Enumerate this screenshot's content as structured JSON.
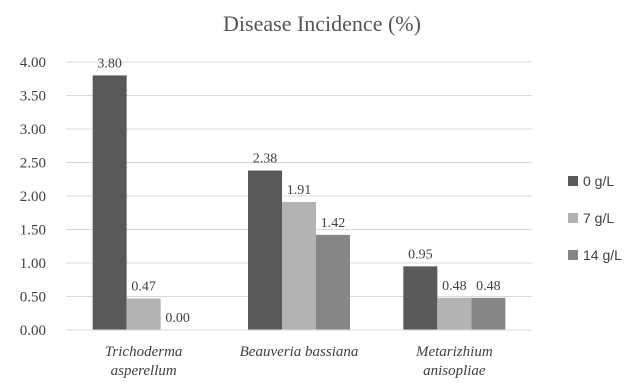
{
  "chart_data": {
    "type": "bar",
    "title": "Disease Incidence (%)",
    "xlabel": "",
    "ylabel": "",
    "categories": [
      [
        "Trichoderma",
        "asperellum"
      ],
      [
        "Beauveria bassiana"
      ],
      [
        "Metarizhium",
        "anisopliae"
      ]
    ],
    "series": [
      {
        "name": "0 g/L",
        "color": "#595959",
        "values": [
          3.8,
          2.38,
          0.95
        ],
        "labels": [
          "3.80",
          "2.38",
          "0.95"
        ]
      },
      {
        "name": "7 g/L",
        "color": "#b3b3b3",
        "values": [
          0.47,
          1.91,
          0.48
        ],
        "labels": [
          "0.47",
          "1.91",
          "0.48"
        ]
      },
      {
        "name": "14 g/L",
        "color": "#868686",
        "values": [
          0.0,
          1.42,
          0.48
        ],
        "labels": [
          "0.00",
          "1.42",
          "0.48"
        ]
      }
    ],
    "ylim": [
      0,
      4
    ],
    "yticks": [
      "0.00",
      "0.50",
      "1.00",
      "1.50",
      "2.00",
      "2.50",
      "3.00",
      "3.50",
      "4.00"
    ],
    "grid": true,
    "legend": "right"
  }
}
